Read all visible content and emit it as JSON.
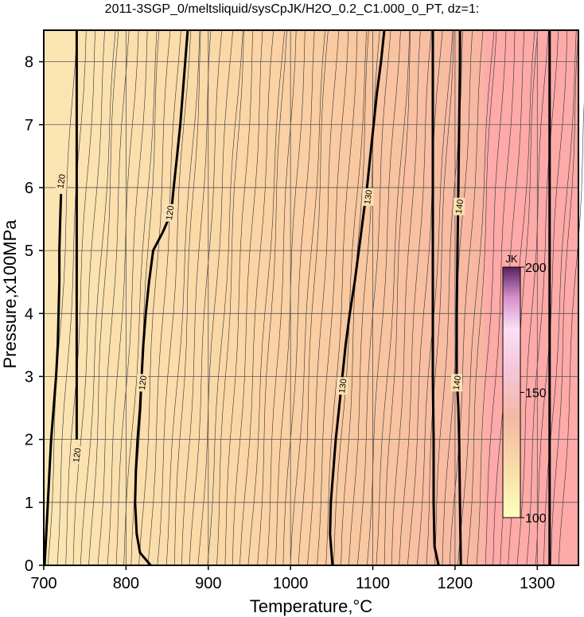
{
  "chart_data": {
    "type": "heatmap",
    "title": "2011-3SGP_0/meltsliquid/sysCpJK/H2O_0.2_C1.000_0_PT, dz=1:",
    "xlabel": "Temperature,°C",
    "ylabel": "Pressure,x100MPa",
    "xlim": [
      700,
      1350
    ],
    "ylim": [
      0,
      8.5
    ],
    "x_ticks": [
      700,
      800,
      900,
      1000,
      1100,
      1200,
      1300
    ],
    "y_ticks": [
      0,
      1,
      2,
      3,
      4,
      5,
      6,
      7,
      8
    ],
    "grid": true,
    "colorbar": {
      "unit": "JK",
      "min": 100,
      "max": 200,
      "ticks": [
        100,
        150,
        200
      ],
      "placement": "right-inside"
    },
    "colors": {
      "low": "#fbe6b3",
      "mid": "#f8c4a0",
      "high": "#fdaaa8"
    },
    "major_contours": [
      {
        "level": "120",
        "points": [
          [
            701,
            0
          ],
          [
            703,
            0.5
          ],
          [
            705,
            1
          ],
          [
            707,
            1.5
          ],
          [
            709,
            2
          ],
          [
            712,
            2.5
          ],
          [
            715,
            3
          ],
          [
            717,
            3.5
          ],
          [
            718,
            4
          ],
          [
            719,
            4.5
          ],
          [
            719,
            5
          ],
          [
            720,
            5.5
          ],
          [
            721,
            5.9
          ]
        ],
        "labels": [
          {
            "x": 721,
            "y": 6.1,
            "text": "120"
          }
        ]
      },
      {
        "level": "120",
        "points": [
          [
            740,
            2
          ],
          [
            740,
            3
          ],
          [
            740,
            4
          ],
          [
            740,
            5
          ],
          [
            740,
            6
          ],
          [
            740,
            7
          ],
          [
            740,
            8
          ],
          [
            740,
            8.5
          ]
        ],
        "labels": [
          {
            "x": 740,
            "y": 1.75,
            "text": "120"
          }
        ]
      },
      {
        "level": "120",
        "points": [
          [
            830,
            0
          ],
          [
            817,
            0.2
          ],
          [
            813,
            0.5
          ],
          [
            811,
            1
          ],
          [
            812,
            1.5
          ],
          [
            814,
            2
          ],
          [
            817,
            2.5
          ],
          [
            819,
            3
          ],
          [
            821,
            3.5
          ],
          [
            824,
            4
          ],
          [
            828,
            4.5
          ],
          [
            833,
            5
          ],
          [
            845,
            5.3
          ],
          [
            855,
            5.6
          ],
          [
            858,
            6
          ],
          [
            862,
            6.5
          ],
          [
            866,
            7
          ],
          [
            869,
            7.5
          ],
          [
            872,
            8
          ],
          [
            875,
            8.5
          ]
        ],
        "labels": [
          {
            "x": 820,
            "y": 2.9,
            "text": "120"
          },
          {
            "x": 853,
            "y": 5.6,
            "text": "120"
          }
        ]
      },
      {
        "level": "130",
        "points": [
          [
            1051,
            0
          ],
          [
            1048,
            0.5
          ],
          [
            1049,
            1
          ],
          [
            1052,
            1.5
          ],
          [
            1055,
            2
          ],
          [
            1059,
            2.5
          ],
          [
            1063,
            3
          ],
          [
            1067,
            3.5
          ],
          [
            1072,
            4
          ],
          [
            1078,
            4.5
          ],
          [
            1083,
            5
          ],
          [
            1088,
            5.5
          ],
          [
            1093,
            6
          ],
          [
            1097,
            6.5
          ],
          [
            1101,
            7
          ],
          [
            1105,
            7.5
          ],
          [
            1110,
            8
          ],
          [
            1114,
            8.5
          ]
        ],
        "labels": [
          {
            "x": 1063,
            "y": 2.85,
            "text": "130"
          },
          {
            "x": 1094,
            "y": 5.85,
            "text": "130"
          }
        ]
      },
      {
        "level": "130",
        "points": [
          [
            1180,
            0
          ],
          [
            1175,
            0.3
          ],
          [
            1174,
            1
          ],
          [
            1174,
            2
          ],
          [
            1173,
            3
          ],
          [
            1173,
            4
          ],
          [
            1173,
            5
          ],
          [
            1173,
            6
          ],
          [
            1173,
            7
          ],
          [
            1173,
            8
          ],
          [
            1173,
            8.5
          ]
        ],
        "labels": []
      },
      {
        "level": "140",
        "points": [
          [
            1207,
            0
          ],
          [
            1206,
            1
          ],
          [
            1205,
            2
          ],
          [
            1204,
            2.5
          ],
          [
            1202,
            3
          ],
          [
            1202,
            4
          ],
          [
            1203,
            5
          ],
          [
            1204,
            6
          ],
          [
            1205,
            7
          ],
          [
            1206,
            8
          ],
          [
            1206,
            8.5
          ]
        ],
        "labels": [
          {
            "x": 1202,
            "y": 2.9,
            "text": "140"
          },
          {
            "x": 1205,
            "y": 5.7,
            "text": "140"
          }
        ]
      },
      {
        "level": "150",
        "points": [
          [
            1315,
            0
          ],
          [
            1315,
            1
          ],
          [
            1315,
            2
          ],
          [
            1315,
            3
          ],
          [
            1315,
            4
          ],
          [
            1315,
            5
          ],
          [
            1315,
            6
          ],
          [
            1315,
            7
          ],
          [
            1315,
            8
          ],
          [
            1315,
            8.5
          ]
        ],
        "labels": []
      }
    ]
  }
}
